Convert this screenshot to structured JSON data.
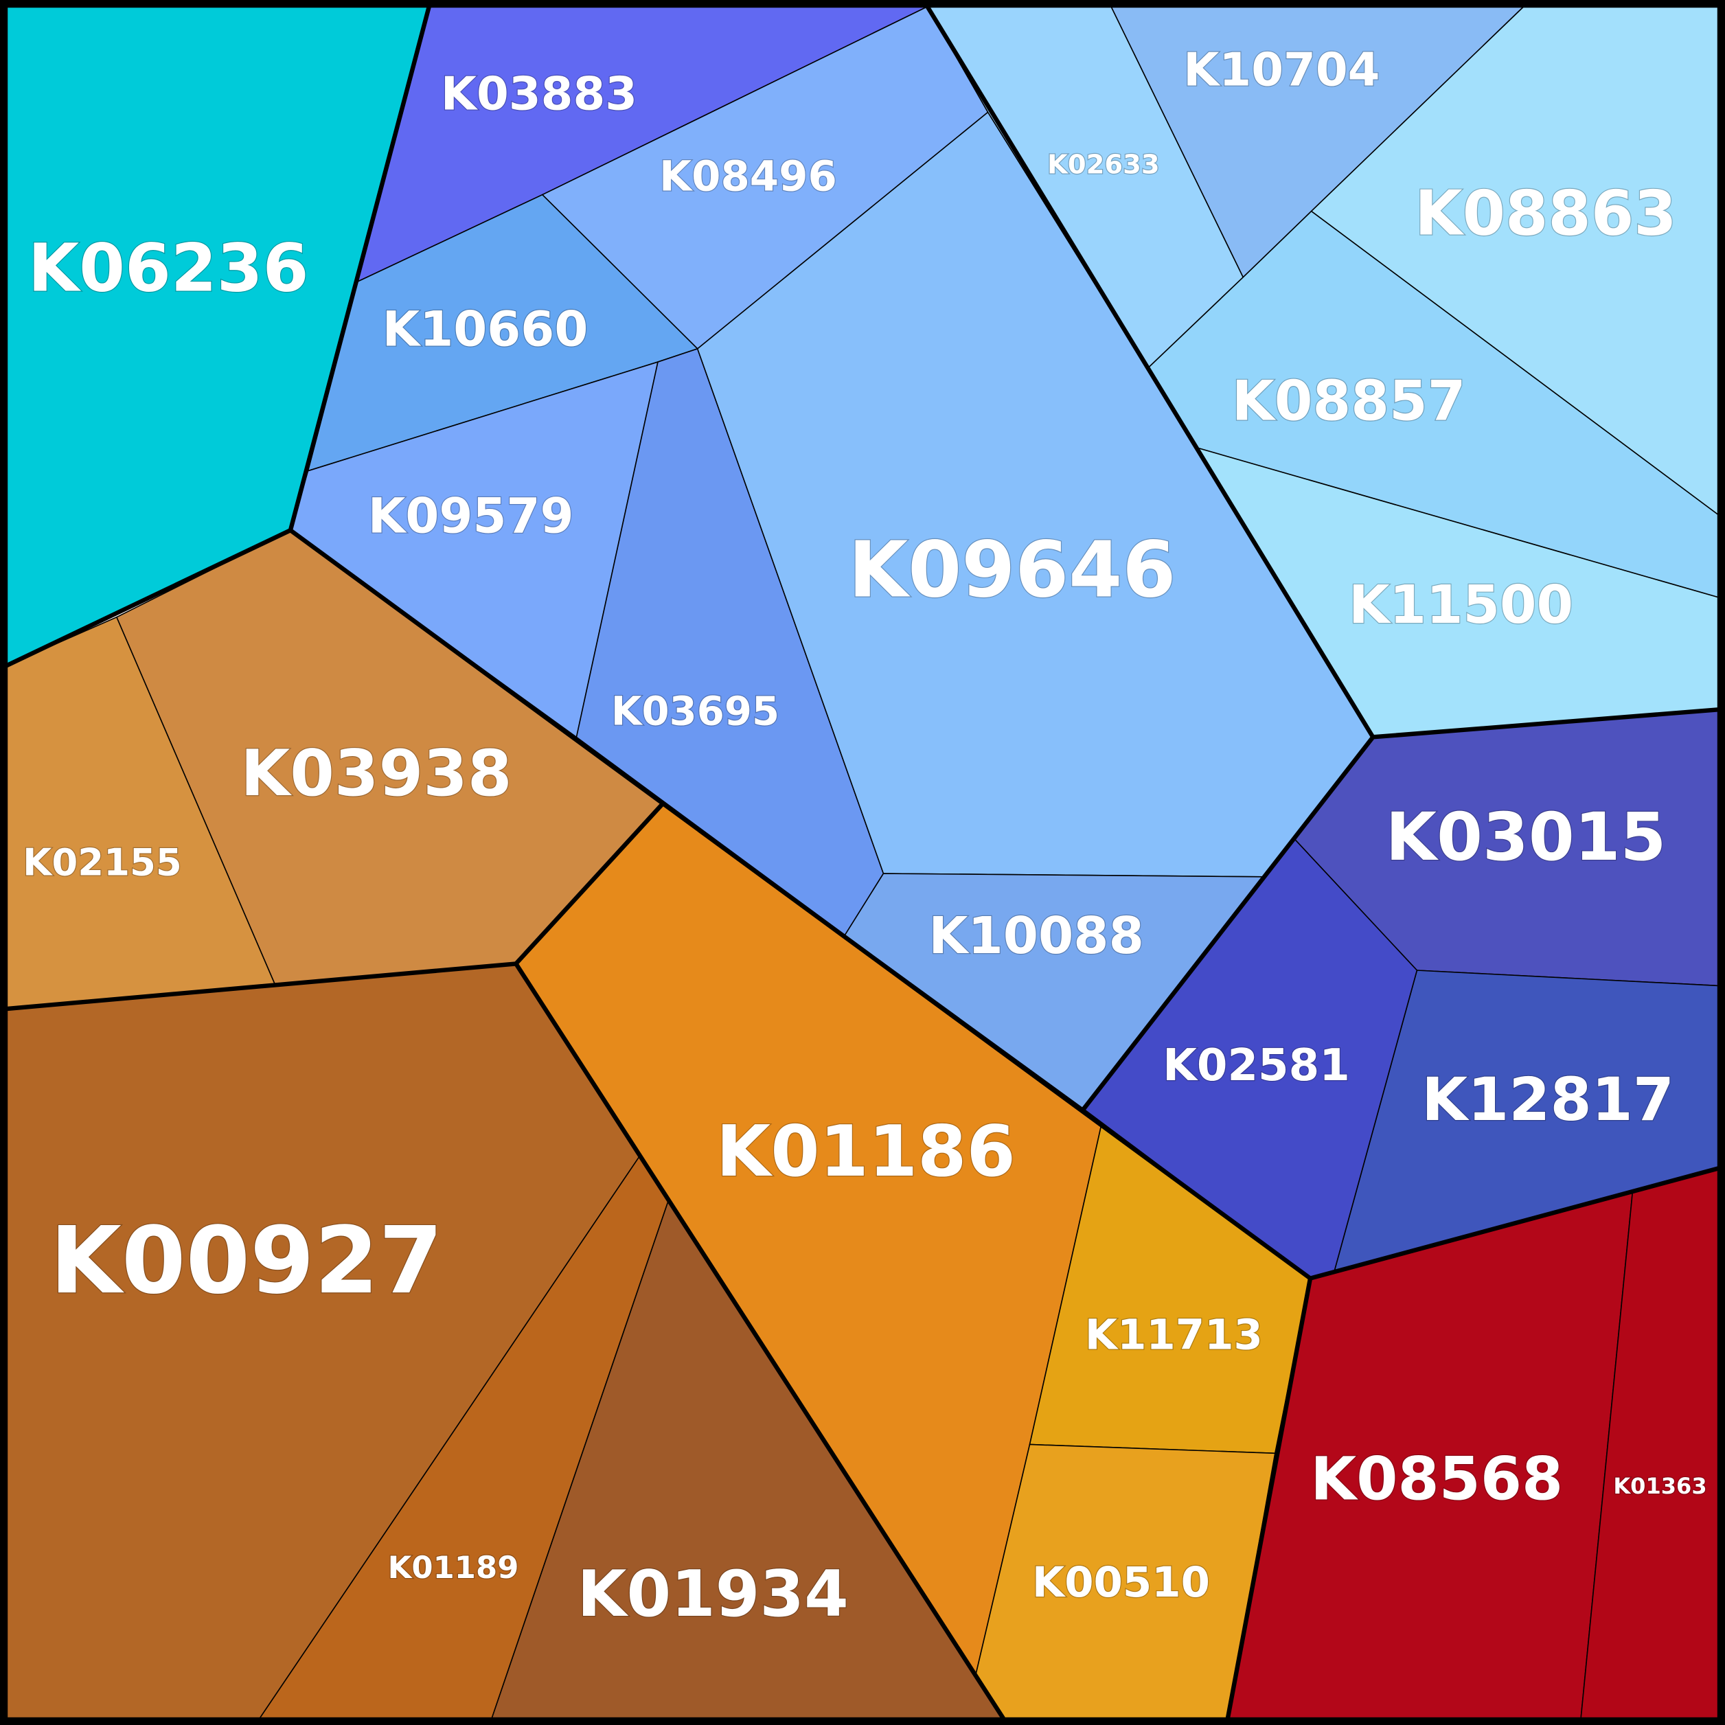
{
  "cells": [
    {
      "label": "K06236"
    },
    {
      "label": "K03883"
    },
    {
      "label": "K08496"
    },
    {
      "label": "K10660"
    },
    {
      "label": "K09579"
    },
    {
      "label": "K03695"
    },
    {
      "label": "K09646"
    },
    {
      "label": "K02633"
    },
    {
      "label": "K10704"
    },
    {
      "label": "K08863"
    },
    {
      "label": "K08857"
    },
    {
      "label": "K11500"
    },
    {
      "label": "K03015"
    },
    {
      "label": "K12817"
    },
    {
      "label": "K02581"
    },
    {
      "label": "K10088"
    },
    {
      "label": "K03938"
    },
    {
      "label": "K02155"
    },
    {
      "label": "K00927"
    },
    {
      "label": "K01189"
    },
    {
      "label": "K01934"
    },
    {
      "label": "K01186"
    },
    {
      "label": "K11713"
    },
    {
      "label": "K00510"
    },
    {
      "label": "K08568"
    },
    {
      "label": "K01363"
    }
  ]
}
